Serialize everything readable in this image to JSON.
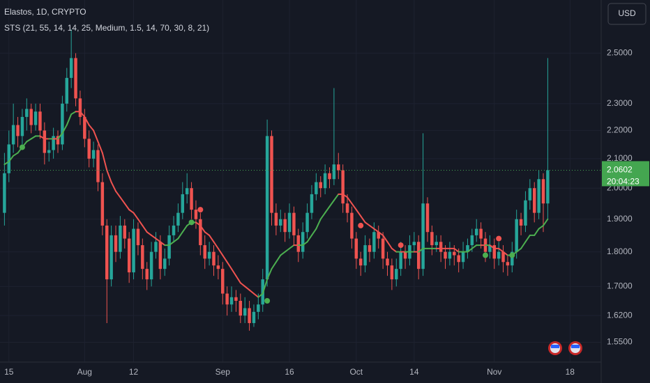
{
  "chart_data": {
    "type": "candlestick",
    "title": "Elastos, 1D, CRYPTO",
    "indicator": "STS (21, 55, 14, 14, 25, Medium, 1.5, 14, 70, 30, 8, 21)",
    "currency": "USD",
    "countdown": "20:04:23",
    "log_scale": true,
    "grid": true,
    "up_color": "#26a69a",
    "down_color": "#ef5350",
    "x": [
      "07-14",
      "07-15",
      "07-16",
      "07-17",
      "07-18",
      "07-19",
      "07-20",
      "07-21",
      "07-22",
      "07-23",
      "07-24",
      "07-25",
      "07-26",
      "07-27",
      "07-28",
      "07-29",
      "07-30",
      "07-31",
      "08-01",
      "08-02",
      "08-03",
      "08-04",
      "08-05",
      "08-06",
      "08-07",
      "08-08",
      "08-09",
      "08-10",
      "08-11",
      "08-12",
      "08-13",
      "08-14",
      "08-15",
      "08-16",
      "08-17",
      "08-18",
      "08-19",
      "08-20",
      "08-21",
      "08-22",
      "08-23",
      "08-24",
      "08-25",
      "08-26",
      "08-27",
      "08-28",
      "08-29",
      "08-30",
      "08-31",
      "09-01",
      "09-02",
      "09-03",
      "09-04",
      "09-05",
      "09-06",
      "09-07",
      "09-08",
      "09-09",
      "09-10",
      "09-11",
      "09-12",
      "09-13",
      "09-14",
      "09-15",
      "09-16",
      "09-17",
      "09-18",
      "09-19",
      "09-20",
      "09-21",
      "09-22",
      "09-23",
      "09-24",
      "09-25",
      "09-26",
      "09-27",
      "09-28",
      "09-29",
      "09-30",
      "10-01",
      "10-02",
      "10-03",
      "10-04",
      "10-05",
      "10-06",
      "10-07",
      "10-08",
      "10-09",
      "10-10",
      "10-11",
      "10-12",
      "10-13",
      "10-14",
      "10-15",
      "10-16",
      "10-17",
      "10-18",
      "10-19",
      "10-20",
      "10-21",
      "10-22",
      "10-23",
      "10-24",
      "10-25",
      "10-26",
      "10-27",
      "10-28",
      "10-29",
      "10-30",
      "10-31",
      "11-01",
      "11-02",
      "11-03",
      "11-04",
      "11-05",
      "11-06",
      "11-07",
      "11-08",
      "11-09",
      "11-10",
      "11-11",
      "11-12",
      "11-13"
    ],
    "ohlc": [
      [
        1.92,
        2.12,
        1.88,
        2.05
      ],
      [
        2.05,
        2.2,
        2.02,
        2.15
      ],
      [
        2.15,
        2.3,
        2.12,
        2.22
      ],
      [
        2.22,
        2.25,
        2.14,
        2.18
      ],
      [
        2.18,
        2.28,
        2.15,
        2.25
      ],
      [
        2.25,
        2.32,
        2.2,
        2.28
      ],
      [
        2.28,
        2.3,
        2.19,
        2.22
      ],
      [
        2.22,
        2.3,
        2.2,
        2.27
      ],
      [
        2.27,
        2.3,
        2.17,
        2.2
      ],
      [
        2.2,
        2.23,
        2.08,
        2.12
      ],
      [
        2.12,
        2.16,
        2.09,
        2.13
      ],
      [
        2.13,
        2.21,
        2.1,
        2.18
      ],
      [
        2.18,
        2.2,
        2.12,
        2.15
      ],
      [
        2.15,
        2.33,
        2.13,
        2.3
      ],
      [
        2.3,
        2.44,
        2.27,
        2.4
      ],
      [
        2.4,
        2.6,
        2.36,
        2.48
      ],
      [
        2.48,
        2.5,
        2.29,
        2.32
      ],
      [
        2.32,
        2.35,
        2.22,
        2.25
      ],
      [
        2.25,
        2.28,
        2.14,
        2.17
      ],
      [
        2.17,
        2.2,
        2.07,
        2.1
      ],
      [
        2.1,
        2.16,
        2.07,
        2.13
      ],
      [
        2.13,
        2.15,
        1.99,
        2.02
      ],
      [
        2.02,
        2.05,
        1.85,
        1.88
      ],
      [
        1.88,
        1.9,
        1.6,
        1.72
      ],
      [
        1.72,
        1.88,
        1.7,
        1.85
      ],
      [
        1.85,
        1.88,
        1.77,
        1.8
      ],
      [
        1.8,
        1.91,
        1.78,
        1.88
      ],
      [
        1.88,
        1.9,
        1.81,
        1.84
      ],
      [
        1.84,
        1.86,
        1.71,
        1.74
      ],
      [
        1.74,
        1.9,
        1.72,
        1.87
      ],
      [
        1.87,
        1.89,
        1.79,
        1.82
      ],
      [
        1.82,
        1.84,
        1.72,
        1.75
      ],
      [
        1.75,
        1.77,
        1.69,
        1.72
      ],
      [
        1.72,
        1.83,
        1.7,
        1.8
      ],
      [
        1.8,
        1.86,
        1.78,
        1.83
      ],
      [
        1.83,
        1.85,
        1.72,
        1.75
      ],
      [
        1.75,
        1.81,
        1.73,
        1.78
      ],
      [
        1.78,
        1.88,
        1.76,
        1.85
      ],
      [
        1.85,
        1.91,
        1.83,
        1.88
      ],
      [
        1.88,
        1.95,
        1.86,
        1.92
      ],
      [
        1.92,
        2.02,
        1.9,
        1.98
      ],
      [
        1.98,
        2.05,
        1.95,
        2.0
      ],
      [
        2.0,
        2.02,
        1.9,
        1.93
      ],
      [
        1.93,
        1.96,
        1.87,
        1.9
      ],
      [
        1.9,
        1.92,
        1.79,
        1.82
      ],
      [
        1.82,
        1.85,
        1.75,
        1.78
      ],
      [
        1.78,
        1.83,
        1.76,
        1.8
      ],
      [
        1.8,
        1.82,
        1.73,
        1.76
      ],
      [
        1.76,
        1.79,
        1.72,
        1.75
      ],
      [
        1.75,
        1.77,
        1.65,
        1.68
      ],
      [
        1.68,
        1.7,
        1.62,
        1.65
      ],
      [
        1.65,
        1.7,
        1.63,
        1.67
      ],
      [
        1.67,
        1.69,
        1.63,
        1.66
      ],
      [
        1.66,
        1.68,
        1.6,
        1.62
      ],
      [
        1.62,
        1.67,
        1.6,
        1.64
      ],
      [
        1.64,
        1.66,
        1.58,
        1.6
      ],
      [
        1.6,
        1.65,
        1.59,
        1.63
      ],
      [
        1.63,
        1.68,
        1.61,
        1.65
      ],
      [
        1.65,
        1.75,
        1.63,
        1.72
      ],
      [
        1.72,
        2.24,
        1.7,
        2.18
      ],
      [
        2.18,
        2.2,
        1.88,
        1.92
      ],
      [
        1.92,
        1.95,
        1.85,
        1.88
      ],
      [
        1.88,
        1.93,
        1.86,
        1.9
      ],
      [
        1.9,
        1.92,
        1.83,
        1.86
      ],
      [
        1.86,
        1.95,
        1.84,
        1.92
      ],
      [
        1.92,
        1.94,
        1.82,
        1.85
      ],
      [
        1.85,
        1.87,
        1.77,
        1.8
      ],
      [
        1.8,
        1.89,
        1.78,
        1.86
      ],
      [
        1.86,
        1.95,
        1.84,
        1.92
      ],
      [
        1.92,
        2.01,
        1.9,
        1.98
      ],
      [
        1.98,
        2.05,
        1.96,
        2.02
      ],
      [
        2.02,
        2.04,
        1.97,
        2.0
      ],
      [
        2.0,
        2.08,
        1.98,
        2.05
      ],
      [
        2.05,
        2.07,
        2.0,
        2.03
      ],
      [
        2.03,
        2.36,
        2.01,
        2.08
      ],
      [
        2.08,
        2.12,
        2.03,
        2.06
      ],
      [
        2.06,
        2.08,
        1.92,
        1.95
      ],
      [
        1.95,
        1.98,
        1.89,
        1.92
      ],
      [
        1.92,
        1.94,
        1.81,
        1.84
      ],
      [
        1.84,
        1.86,
        1.75,
        1.78
      ],
      [
        1.78,
        1.8,
        1.73,
        1.76
      ],
      [
        1.76,
        1.85,
        1.74,
        1.82
      ],
      [
        1.82,
        1.84,
        1.77,
        1.8
      ],
      [
        1.8,
        1.89,
        1.78,
        1.86
      ],
      [
        1.86,
        1.88,
        1.81,
        1.84
      ],
      [
        1.84,
        1.86,
        1.75,
        1.78
      ],
      [
        1.78,
        1.8,
        1.73,
        1.76
      ],
      [
        1.76,
        1.78,
        1.69,
        1.72
      ],
      [
        1.72,
        1.78,
        1.7,
        1.75
      ],
      [
        1.75,
        1.83,
        1.73,
        1.8
      ],
      [
        1.8,
        1.82,
        1.75,
        1.78
      ],
      [
        1.78,
        1.85,
        1.76,
        1.82
      ],
      [
        1.82,
        1.86,
        1.8,
        1.83
      ],
      [
        1.83,
        1.85,
        1.72,
        1.75
      ],
      [
        1.75,
        2.19,
        1.73,
        1.95
      ],
      [
        1.95,
        1.97,
        1.83,
        1.86
      ],
      [
        1.86,
        1.88,
        1.79,
        1.82
      ],
      [
        1.82,
        1.85,
        1.8,
        1.83
      ],
      [
        1.83,
        1.85,
        1.77,
        1.8
      ],
      [
        1.8,
        1.82,
        1.75,
        1.78
      ],
      [
        1.78,
        1.83,
        1.76,
        1.8
      ],
      [
        1.8,
        1.82,
        1.76,
        1.79
      ],
      [
        1.79,
        1.81,
        1.74,
        1.77
      ],
      [
        1.77,
        1.83,
        1.75,
        1.8
      ],
      [
        1.8,
        1.84,
        1.78,
        1.82
      ],
      [
        1.82,
        1.87,
        1.8,
        1.85
      ],
      [
        1.85,
        1.9,
        1.83,
        1.87
      ],
      [
        1.87,
        1.89,
        1.81,
        1.84
      ],
      [
        1.84,
        1.86,
        1.77,
        1.8
      ],
      [
        1.8,
        1.85,
        1.78,
        1.82
      ],
      [
        1.82,
        1.84,
        1.75,
        1.78
      ],
      [
        1.78,
        1.83,
        1.76,
        1.8
      ],
      [
        1.8,
        1.82,
        1.74,
        1.77
      ],
      [
        1.77,
        1.79,
        1.73,
        1.76
      ],
      [
        1.76,
        1.83,
        1.74,
        1.8
      ],
      [
        1.8,
        1.93,
        1.78,
        1.9
      ],
      [
        1.9,
        1.92,
        1.85,
        1.88
      ],
      [
        1.88,
        1.99,
        1.86,
        1.96
      ],
      [
        1.96,
        2.03,
        1.93,
        2.0
      ],
      [
        2.0,
        2.02,
        1.89,
        1.92
      ],
      [
        1.92,
        2.06,
        1.9,
        2.03
      ],
      [
        2.03,
        2.05,
        1.86,
        1.95
      ],
      [
        1.95,
        2.48,
        1.9,
        2.0602
      ]
    ],
    "ma": {
      "up_color": "#4caf50",
      "down_color": "#f05350",
      "values": [
        2.08,
        2.09,
        2.11,
        2.12,
        2.14,
        2.16,
        2.17,
        2.18,
        2.18,
        2.17,
        2.17,
        2.17,
        2.17,
        2.19,
        2.22,
        2.26,
        2.27,
        2.27,
        2.25,
        2.22,
        2.2,
        2.16,
        2.12,
        2.06,
        2.02,
        1.99,
        1.97,
        1.95,
        1.93,
        1.92,
        1.9,
        1.88,
        1.86,
        1.85,
        1.84,
        1.83,
        1.82,
        1.82,
        1.83,
        1.84,
        1.86,
        1.88,
        1.89,
        1.89,
        1.88,
        1.86,
        1.85,
        1.83,
        1.81,
        1.79,
        1.77,
        1.75,
        1.73,
        1.71,
        1.7,
        1.69,
        1.68,
        1.67,
        1.68,
        1.72,
        1.75,
        1.77,
        1.79,
        1.8,
        1.81,
        1.82,
        1.82,
        1.82,
        1.83,
        1.85,
        1.87,
        1.9,
        1.92,
        1.94,
        1.96,
        1.98,
        1.98,
        1.97,
        1.95,
        1.93,
        1.91,
        1.89,
        1.88,
        1.87,
        1.86,
        1.85,
        1.83,
        1.81,
        1.8,
        1.8,
        1.8,
        1.8,
        1.8,
        1.8,
        1.81,
        1.81,
        1.81,
        1.81,
        1.81,
        1.81,
        1.81,
        1.81,
        1.8,
        1.8,
        1.8,
        1.81,
        1.82,
        1.82,
        1.82,
        1.82,
        1.81,
        1.81,
        1.8,
        1.79,
        1.79,
        1.8,
        1.81,
        1.83,
        1.85,
        1.85,
        1.87,
        1.88,
        1.9
      ]
    },
    "signals": [
      {
        "x": "07-18",
        "value": 2.14,
        "color": "#4caf50"
      },
      {
        "x": "08-25",
        "value": 1.89,
        "color": "#4caf50"
      },
      {
        "x": "08-27",
        "value": 1.93,
        "color": "#f05350"
      },
      {
        "x": "09-11",
        "value": 1.66,
        "color": "#4caf50"
      },
      {
        "x": "10-02",
        "value": 1.88,
        "color": "#f05350"
      },
      {
        "x": "10-11",
        "value": 1.82,
        "color": "#f05350"
      },
      {
        "x": "10-30",
        "value": 1.79,
        "color": "#4caf50"
      },
      {
        "x": "11-02",
        "value": 1.84,
        "color": "#f05350"
      },
      {
        "x": "11-05",
        "value": 1.79,
        "color": "#4caf50"
      }
    ],
    "xlim": [
      "07-13",
      "11-25"
    ],
    "xticks": [
      {
        "value": "07-15",
        "label": "15"
      },
      {
        "value": "08-01",
        "label": "Aug"
      },
      {
        "value": "08-12",
        "label": "12"
      },
      {
        "value": "09-01",
        "label": "Sep"
      },
      {
        "value": "09-16",
        "label": "16"
      },
      {
        "value": "10-01",
        "label": "Oct"
      },
      {
        "value": "10-14",
        "label": "14"
      },
      {
        "value": "11-01",
        "label": "Nov"
      },
      {
        "value": "11-18",
        "label": "18"
      }
    ],
    "ylim": [
      1.5,
      2.73
    ],
    "yticks": [
      {
        "value": 2.5,
        "label": "2.5000"
      },
      {
        "value": 2.3,
        "label": "2.3000"
      },
      {
        "value": 2.2,
        "label": "2.2000"
      },
      {
        "value": 2.1,
        "label": "2.1000"
      },
      {
        "value": 2.0,
        "label": "2.0000"
      },
      {
        "value": 1.9,
        "label": "1.9000"
      },
      {
        "value": 1.8,
        "label": "1.8000"
      },
      {
        "value": 1.7,
        "label": "1.7000"
      },
      {
        "value": 1.62,
        "label": "1.6200"
      },
      {
        "value": 1.55,
        "label": "1.5500"
      }
    ],
    "price_color": "#44a650"
  }
}
